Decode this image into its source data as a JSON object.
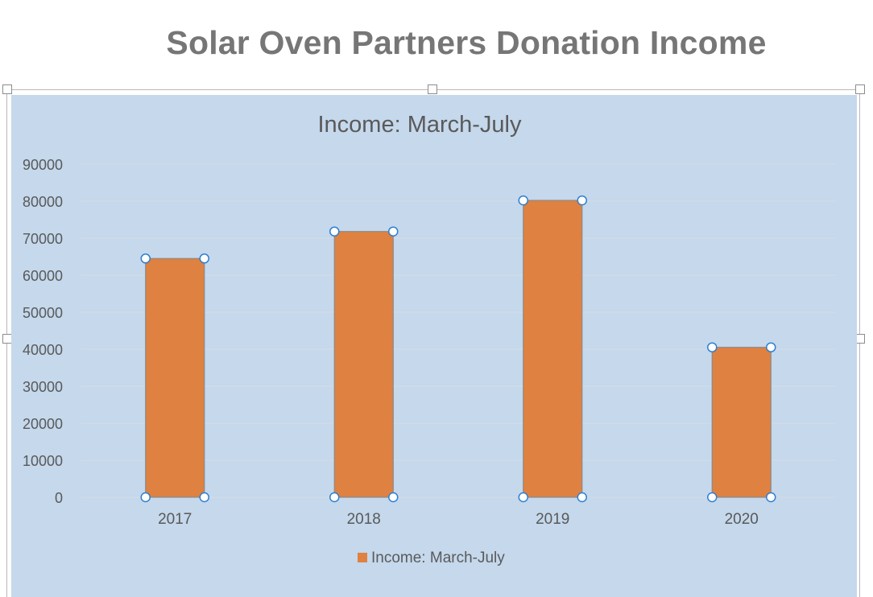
{
  "page_title": "Solar Oven Partners Donation Income",
  "colors": {
    "chart_background": "#c5d8ec",
    "bar_fill": "#df8140",
    "bar_stroke": "#8a8a8a",
    "gridline": "#d6dde6",
    "handle_stroke": "#2f7fd0"
  },
  "chart_data": {
    "type": "bar",
    "title": "Income: March-July",
    "categories": [
      "2017",
      "2018",
      "2019",
      "2020"
    ],
    "series": [
      {
        "name": "Income: March-July",
        "values": [
          64500,
          71800,
          80200,
          40500
        ]
      }
    ],
    "ylim": [
      0,
      90000
    ],
    "yticks": [
      "0",
      "10000",
      "20000",
      "30000",
      "40000",
      "50000",
      "60000",
      "70000",
      "80000",
      "90000"
    ],
    "xlabel": "",
    "ylabel": "",
    "grid": true,
    "legend": "bottom",
    "selected": true
  }
}
